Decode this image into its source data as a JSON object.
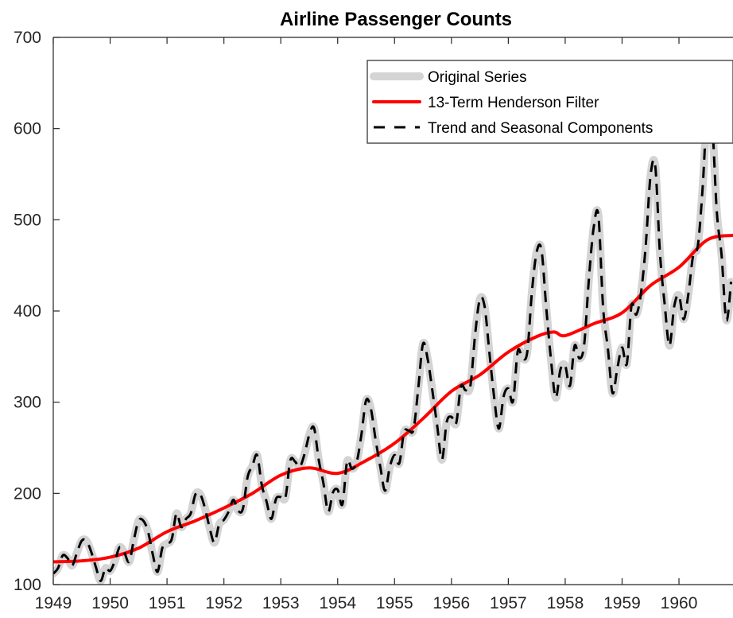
{
  "chart_data": {
    "type": "line",
    "title": "Airline Passenger Counts",
    "xlabel": "",
    "ylabel": "",
    "xlim": [
      1949,
      1960.95
    ],
    "ylim": [
      100,
      700
    ],
    "x_ticks": [
      1949,
      1950,
      1951,
      1952,
      1953,
      1954,
      1955,
      1956,
      1957,
      1958,
      1959,
      1960
    ],
    "y_ticks": [
      100,
      200,
      300,
      400,
      500,
      600,
      700
    ],
    "grid": false,
    "legend_position": "top-right",
    "series": [
      {
        "name": "Original Series",
        "color": "#d4d4d4",
        "style": "solid-thick",
        "x_start": 1949,
        "x_step": 0.08333,
        "values": [
          112,
          118,
          132,
          129,
          121,
          135,
          148,
          148,
          136,
          119,
          104,
          118,
          115,
          126,
          141,
          135,
          125,
          149,
          170,
          170,
          158,
          133,
          114,
          140,
          145,
          150,
          178,
          163,
          172,
          178,
          199,
          199,
          184,
          162,
          146,
          166,
          171,
          180,
          193,
          181,
          183,
          218,
          230,
          242,
          209,
          191,
          172,
          194,
          196,
          196,
          236,
          235,
          229,
          243,
          264,
          272,
          237,
          211,
          180,
          201,
          204,
          188,
          235,
          227,
          234,
          264,
          302,
          293,
          259,
          229,
          203,
          229,
          242,
          233,
          267,
          269,
          270,
          315,
          364,
          347,
          312,
          274,
          237,
          278,
          284,
          277,
          317,
          313,
          318,
          374,
          413,
          405,
          355,
          306,
          271,
          306,
          315,
          301,
          356,
          348,
          355,
          422,
          465,
          467,
          404,
          347,
          305,
          336,
          340,
          318,
          362,
          348,
          363,
          435,
          491,
          505,
          404,
          359,
          310,
          337,
          360,
          342,
          406,
          396,
          420,
          472,
          548,
          559,
          463,
          407,
          362,
          405,
          417,
          391,
          419,
          461,
          472,
          535,
          622,
          606,
          508,
          461,
          390,
          432
        ]
      },
      {
        "name": "13-Term Henderson Filter",
        "color": "#ff0000",
        "style": "solid",
        "x": [
          1949,
          1949.5,
          1950,
          1950.5,
          1951,
          1951.5,
          1952,
          1952.5,
          1953,
          1953.5,
          1954,
          1954.5,
          1955,
          1955.5,
          1956,
          1956.5,
          1957,
          1957.5,
          1957.8,
          1958,
          1958.5,
          1959,
          1959.5,
          1960,
          1960.5,
          1960.95
        ],
        "values": [
          125,
          126,
          130,
          140,
          158,
          170,
          184,
          200,
          220,
          228,
          222,
          236,
          255,
          282,
          312,
          330,
          355,
          372,
          377,
          373,
          386,
          398,
          428,
          448,
          478,
          483
        ]
      },
      {
        "name": "Trend and Seasonal Components",
        "color": "#000000",
        "style": "dashed",
        "x_start": 1949,
        "x_step": 0.08333,
        "values": [
          112,
          118,
          132,
          129,
          121,
          135,
          148,
          148,
          136,
          119,
          104,
          118,
          115,
          126,
          141,
          135,
          125,
          149,
          170,
          170,
          158,
          133,
          114,
          140,
          145,
          150,
          178,
          163,
          172,
          178,
          199,
          199,
          184,
          162,
          146,
          166,
          171,
          180,
          193,
          181,
          183,
          218,
          230,
          242,
          209,
          191,
          172,
          194,
          196,
          196,
          236,
          235,
          229,
          243,
          264,
          272,
          237,
          211,
          180,
          201,
          204,
          188,
          235,
          227,
          234,
          264,
          302,
          293,
          259,
          229,
          203,
          229,
          242,
          233,
          267,
          269,
          270,
          315,
          364,
          347,
          312,
          274,
          237,
          278,
          284,
          277,
          317,
          313,
          318,
          374,
          413,
          405,
          355,
          306,
          271,
          306,
          315,
          301,
          356,
          348,
          355,
          422,
          465,
          467,
          404,
          347,
          305,
          336,
          340,
          318,
          362,
          348,
          363,
          435,
          491,
          505,
          404,
          359,
          310,
          337,
          360,
          342,
          406,
          396,
          420,
          472,
          548,
          559,
          463,
          407,
          362,
          405,
          417,
          391,
          419,
          461,
          472,
          535,
          622,
          606,
          508,
          461,
          390,
          432
        ]
      }
    ]
  }
}
